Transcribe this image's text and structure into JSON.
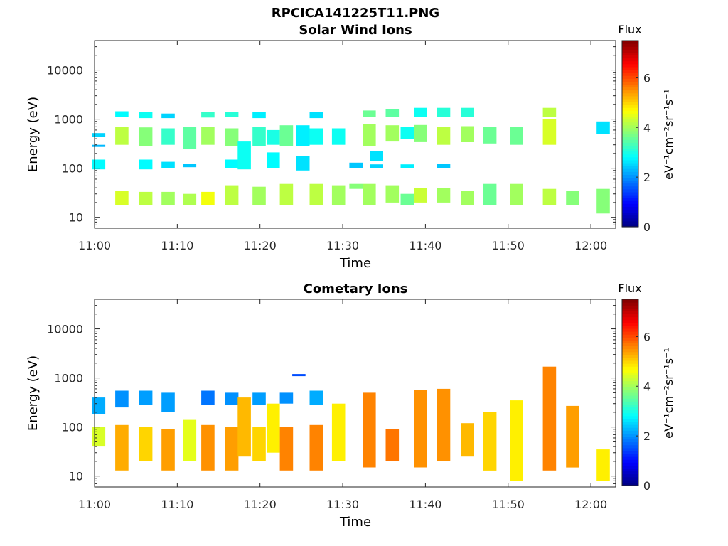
{
  "figure_title": "RPCICA141225T11.PNG",
  "colorbar": {
    "title": "Flux",
    "label": "eV⁻¹cm⁻²sr⁻¹s⁻¹",
    "ticks": [
      0,
      2,
      4,
      6
    ],
    "range": [
      0,
      7.5
    ],
    "colormap": "jet"
  },
  "chart_data": [
    {
      "type": "heatmap",
      "title": "Solar Wind Ions",
      "xlabel": "Time",
      "ylabel": "Energy (eV)",
      "xlim": [
        "11:00",
        "12:03"
      ],
      "ylim": [
        6,
        40000
      ],
      "yscale": "log",
      "xticks": [
        "11:00",
        "11:10",
        "11:20",
        "11:30",
        "11:40",
        "11:50",
        "12:00"
      ],
      "yticks": [
        10,
        100,
        1000,
        10000
      ],
      "grid": false,
      "columns": [
        {
          "t": "11:00.5",
          "bands": [
            [
              280,
              300,
              2.3
            ],
            [
              440,
              520,
              2.5
            ],
            [
              95,
              150,
              2.8
            ]
          ]
        },
        {
          "t": "11:03.3",
          "bands": [
            [
              1100,
              1450,
              2.8
            ],
            [
              300,
              700,
              4.2
            ],
            [
              18,
              35,
              4.4
            ]
          ]
        },
        {
          "t": "11:06.2",
          "bands": [
            [
              1050,
              1400,
              2.9
            ],
            [
              280,
              680,
              3.8
            ],
            [
              95,
              150,
              2.8
            ],
            [
              18,
              33,
              4.2
            ]
          ]
        },
        {
          "t": "11:08.9",
          "bands": [
            [
              1050,
              1300,
              2.5
            ],
            [
              300,
              650,
              3.2
            ],
            [
              100,
              135,
              2.6
            ],
            [
              18,
              33,
              4.0
            ]
          ]
        },
        {
          "t": "11:11.5",
          "bands": [
            [
              250,
              700,
              3.5
            ],
            [
              105,
              125,
              2.4
            ],
            [
              18,
              30,
              4.1
            ]
          ]
        },
        {
          "t": "11:13.7",
          "bands": [
            [
              1080,
              1400,
              3.2
            ],
            [
              300,
              700,
              4.0
            ],
            [
              18,
              33,
              4.6
            ]
          ]
        },
        {
          "t": "11:16.6",
          "bands": [
            [
              1100,
              1400,
              3.1
            ],
            [
              280,
              650,
              3.8
            ],
            [
              100,
              150,
              2.8
            ],
            [
              18,
              45,
              4.2
            ]
          ]
        },
        {
          "t": "11:18.1",
          "bands": [
            [
              95,
              350,
              2.9
            ]
          ]
        },
        {
          "t": "11:19.9",
          "bands": [
            [
              1050,
              1400,
              2.7
            ],
            [
              280,
              700,
              3.2
            ],
            [
              18,
              42,
              4.0
            ]
          ]
        },
        {
          "t": "11:21.6",
          "bands": [
            [
              100,
              210,
              2.8
            ],
            [
              300,
              600,
              3.0
            ]
          ]
        },
        {
          "t": "11:23.2",
          "bands": [
            [
              280,
              750,
              3.6
            ],
            [
              18,
              48,
              4.2
            ]
          ]
        },
        {
          "t": "11:25.2",
          "bands": [
            [
              90,
              180,
              2.6
            ],
            [
              280,
              750,
              2.7
            ]
          ]
        },
        {
          "t": "11:26.8",
          "bands": [
            [
              1050,
              1400,
              2.6
            ],
            [
              300,
              650,
              2.9
            ],
            [
              18,
              48,
              4.2
            ]
          ]
        },
        {
          "t": "11:29.5",
          "bands": [
            [
              300,
              650,
              2.9
            ],
            [
              18,
              45,
              4.0
            ]
          ]
        },
        {
          "t": "11:31.6",
          "bands": [
            [
              100,
              130,
              2.4
            ],
            [
              38,
              48,
              3.8
            ]
          ]
        },
        {
          "t": "11:33.2",
          "bands": [
            [
              1100,
              1500,
              3.6
            ],
            [
              280,
              800,
              4.0
            ],
            [
              18,
              48,
              4.0
            ]
          ]
        },
        {
          "t": "11:34.1",
          "bands": [
            [
              100,
              120,
              2.5
            ],
            [
              140,
              220,
              2.6
            ]
          ]
        },
        {
          "t": "11:36.0",
          "bands": [
            [
              1100,
              1600,
              3.5
            ],
            [
              350,
              750,
              4.0
            ],
            [
              20,
              45,
              4.0
            ]
          ]
        },
        {
          "t": "11:37.8",
          "bands": [
            [
              100,
              120,
              2.7
            ],
            [
              400,
              700,
              2.9
            ],
            [
              18,
              30,
              3.6
            ]
          ]
        },
        {
          "t": "11:39.4",
          "bands": [
            [
              1100,
              1700,
              2.9
            ],
            [
              340,
              760,
              3.8
            ],
            [
              20,
              40,
              4.3
            ]
          ]
        },
        {
          "t": "11:42.2",
          "bands": [
            [
              1100,
              1700,
              3.1
            ],
            [
              300,
              700,
              4.2
            ],
            [
              100,
              125,
              2.4
            ],
            [
              20,
              40,
              4.0
            ]
          ]
        },
        {
          "t": "11:45.1",
          "bands": [
            [
              1100,
              1700,
              3.1
            ],
            [
              340,
              720,
              4.0
            ],
            [
              18,
              35,
              4.0
            ]
          ]
        },
        {
          "t": "11:47.8",
          "bands": [
            [
              320,
              700,
              3.6
            ],
            [
              18,
              48,
              3.6
            ]
          ]
        },
        {
          "t": "11:51.0",
          "bands": [
            [
              300,
              700,
              3.6
            ],
            [
              18,
              48,
              4.0
            ]
          ]
        },
        {
          "t": "11:55.0",
          "bands": [
            [
              1100,
              1700,
              4.2
            ],
            [
              300,
              1000,
              4.4
            ],
            [
              18,
              38,
              4.2
            ]
          ]
        },
        {
          "t": "11:57.8",
          "bands": [
            [
              18,
              35,
              3.8
            ]
          ]
        },
        {
          "t": "12:01.5",
          "bands": [
            [
              500,
              900,
              2.6
            ],
            [
              12,
              38,
              3.8
            ]
          ]
        }
      ]
    },
    {
      "type": "heatmap",
      "title": "Cometary Ions",
      "xlabel": "Time",
      "ylabel": "Energy (eV)",
      "xlim": [
        "11:00",
        "12:03"
      ],
      "ylim": [
        6,
        40000
      ],
      "yscale": "log",
      "xticks": [
        "11:00",
        "11:10",
        "11:20",
        "11:30",
        "11:40",
        "11:50",
        "12:00"
      ],
      "yticks": [
        10,
        100,
        1000,
        10000
      ],
      "grid": false,
      "columns": [
        {
          "t": "11:00.5",
          "bands": [
            [
              180,
              400,
              2.2
            ],
            [
              40,
              100,
              4.4
            ]
          ]
        },
        {
          "t": "11:03.3",
          "bands": [
            [
              250,
              550,
              2.0
            ],
            [
              13,
              110,
              5.3
            ]
          ]
        },
        {
          "t": "11:06.2",
          "bands": [
            [
              280,
              550,
              2.1
            ],
            [
              20,
              100,
              5.0
            ]
          ]
        },
        {
          "t": "11:08.9",
          "bands": [
            [
              200,
              500,
              2.1
            ],
            [
              13,
              90,
              5.4
            ]
          ]
        },
        {
          "t": "11:11.5",
          "bands": [
            [
              20,
              140,
              4.5
            ]
          ]
        },
        {
          "t": "11:13.7",
          "bands": [
            [
              280,
              550,
              1.8
            ],
            [
              13,
              110,
              5.5
            ]
          ]
        },
        {
          "t": "11:16.6",
          "bands": [
            [
              280,
              500,
              2.0
            ],
            [
              13,
              100,
              5.4
            ]
          ]
        },
        {
          "t": "11:18.1",
          "bands": [
            [
              25,
              400,
              5.2
            ]
          ]
        },
        {
          "t": "11:19.9",
          "bands": [
            [
              280,
              500,
              2.1
            ],
            [
              20,
              100,
              5.0
            ]
          ]
        },
        {
          "t": "11:21.6",
          "bands": [
            [
              30,
              300,
              4.8
            ]
          ]
        },
        {
          "t": "11:23.2",
          "bands": [
            [
              300,
              500,
              2.0
            ],
            [
              13,
              100,
              5.6
            ]
          ]
        },
        {
          "t": "11:24.7",
          "bands": [
            [
              1100,
              1200,
              1.5
            ]
          ]
        },
        {
          "t": "11:26.8",
          "bands": [
            [
              280,
              550,
              2.2
            ],
            [
              13,
              110,
              5.6
            ]
          ]
        },
        {
          "t": "11:29.5",
          "bands": [
            [
              20,
              300,
              4.8
            ]
          ]
        },
        {
          "t": "11:33.2",
          "bands": [
            [
              15,
              500,
              5.6
            ]
          ]
        },
        {
          "t": "11:36.0",
          "bands": [
            [
              20,
              90,
              5.7
            ]
          ]
        },
        {
          "t": "11:39.4",
          "bands": [
            [
              15,
              560,
              5.5
            ]
          ]
        },
        {
          "t": "11:42.2",
          "bands": [
            [
              20,
              600,
              5.5
            ]
          ]
        },
        {
          "t": "11:45.1",
          "bands": [
            [
              25,
              120,
              5.2
            ]
          ]
        },
        {
          "t": "11:47.8",
          "bands": [
            [
              13,
              200,
              5.0
            ]
          ]
        },
        {
          "t": "11:51.0",
          "bands": [
            [
              8,
              350,
              4.8
            ]
          ]
        },
        {
          "t": "11:55.0",
          "bands": [
            [
              13,
              1700,
              5.6
            ]
          ]
        },
        {
          "t": "11:57.8",
          "bands": [
            [
              15,
              270,
              5.4
            ]
          ]
        },
        {
          "t": "12:01.5",
          "bands": [
            [
              8,
              35,
              4.8
            ]
          ]
        }
      ]
    }
  ]
}
